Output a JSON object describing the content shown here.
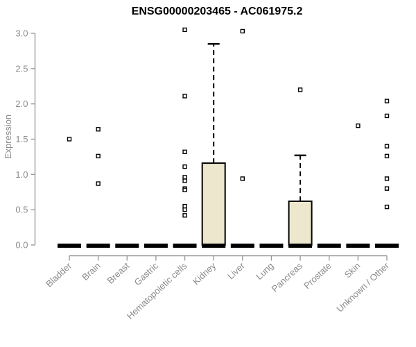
{
  "chart_data": {
    "type": "boxplot",
    "title": "ENSG00000203465 - AC061975.2",
    "ylabel": "Expression",
    "xlabel": "",
    "ylim": [
      0.0,
      3.0
    ],
    "yticks": [
      0.0,
      0.5,
      1.0,
      1.5,
      2.0,
      2.5,
      3.0
    ],
    "grid": false,
    "legend": false,
    "categories": [
      "Bladder",
      "Brain",
      "Breast",
      "Gastric",
      "Hematopoietic cells",
      "Kidney",
      "Liver",
      "Lung",
      "Pancreas",
      "Prostate",
      "Skin",
      "Unknown / Other"
    ],
    "boxes": [
      {
        "category": "Bladder",
        "q1": 0,
        "median": 0,
        "q3": 0,
        "whisker_low": 0,
        "whisker_high": 0,
        "outliers": [
          1.5
        ]
      },
      {
        "category": "Brain",
        "q1": 0,
        "median": 0,
        "q3": 0,
        "whisker_low": 0,
        "whisker_high": 0,
        "outliers": [
          1.64,
          1.26,
          0.87
        ]
      },
      {
        "category": "Breast",
        "q1": 0,
        "median": 0,
        "q3": 0,
        "whisker_low": 0,
        "whisker_high": 0,
        "outliers": []
      },
      {
        "category": "Gastric",
        "q1": 0,
        "median": 0,
        "q3": 0,
        "whisker_low": 0,
        "whisker_high": 0,
        "outliers": []
      },
      {
        "category": "Hematopoietic cells",
        "q1": 0,
        "median": 0,
        "q3": 0,
        "whisker_low": 0,
        "whisker_high": 0,
        "outliers": [
          3.05,
          2.11,
          1.32,
          1.11,
          0.96,
          0.91,
          0.8,
          0.78,
          0.55,
          0.5,
          0.42
        ]
      },
      {
        "category": "Kidney",
        "q1": 0,
        "median": 0,
        "q3": 1.16,
        "whisker_low": 0,
        "whisker_high": 2.85,
        "outliers": []
      },
      {
        "category": "Liver",
        "q1": 0,
        "median": 0,
        "q3": 0,
        "whisker_low": 0,
        "whisker_high": 0,
        "outliers": [
          3.03,
          0.94
        ]
      },
      {
        "category": "Lung",
        "q1": 0,
        "median": 0,
        "q3": 0,
        "whisker_low": 0,
        "whisker_high": 0,
        "outliers": []
      },
      {
        "category": "Pancreas",
        "q1": 0,
        "median": 0,
        "q3": 0.62,
        "whisker_low": 0,
        "whisker_high": 1.27,
        "outliers": [
          2.2
        ]
      },
      {
        "category": "Prostate",
        "q1": 0,
        "median": 0,
        "q3": 0,
        "whisker_low": 0,
        "whisker_high": 0,
        "outliers": []
      },
      {
        "category": "Skin",
        "q1": 0,
        "median": 0,
        "q3": 0,
        "whisker_low": 0,
        "whisker_high": 0,
        "outliers": [
          1.69
        ]
      },
      {
        "category": "Unknown / Other",
        "q1": 0,
        "median": 0,
        "q3": 0,
        "whisker_low": 0,
        "whisker_high": 0,
        "outliers": [
          2.04,
          1.83,
          1.4,
          1.26,
          0.94,
          0.8,
          0.54
        ]
      }
    ],
    "colors": {
      "box_fill": "#ece7cd",
      "box_border": "#000000",
      "median": "#000000",
      "whisker": "#000000",
      "outlier_fill": "#ffffff",
      "outlier_border": "#000000",
      "axis_line": "#9b9b9b",
      "tick_text": "#8b8b8b",
      "title_text": "#000000",
      "background": "#ffffff"
    }
  }
}
